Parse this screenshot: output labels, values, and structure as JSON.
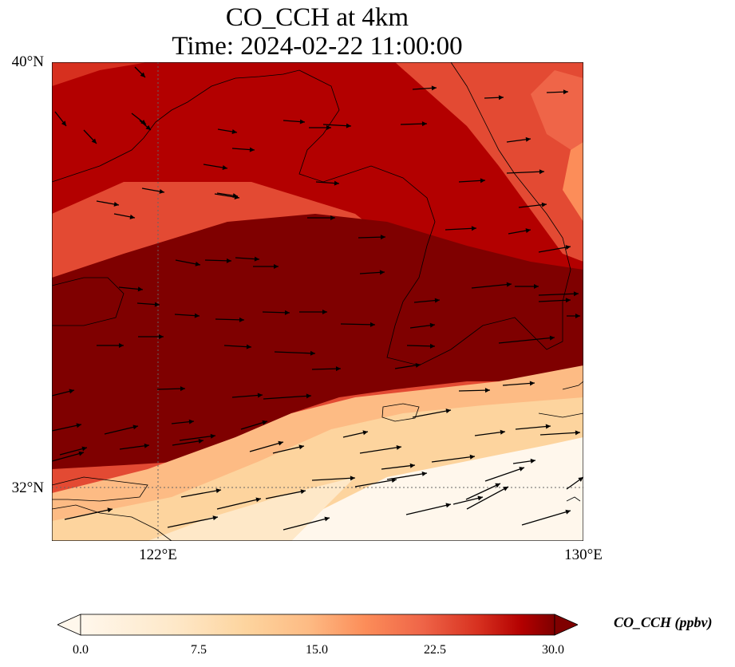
{
  "title_line1": "CO_CCH at 4km",
  "title_line2": "Time: 2024-02-22 11:00:00",
  "lat_labels": {
    "north": "40°N",
    "south": "32°N"
  },
  "lon_labels": {
    "west": "122°E",
    "east": "130°E"
  },
  "map": {
    "lon_range": [
      120,
      130
    ],
    "lat_range": [
      31,
      40
    ],
    "gridlines": [
      {
        "lon": 122
      },
      {
        "lat": 32
      }
    ]
  },
  "colorbar": {
    "label": "CO_CCH (ppbv)",
    "ticks": [
      "0.0",
      "7.5",
      "15.0",
      "22.5",
      "30.0"
    ],
    "range": [
      0,
      30
    ],
    "colormap": "OrRd",
    "extend": "both"
  },
  "colors": {
    "low": "#fff7ec",
    "mid": "#fc8d59",
    "high": "#7f0000"
  }
}
